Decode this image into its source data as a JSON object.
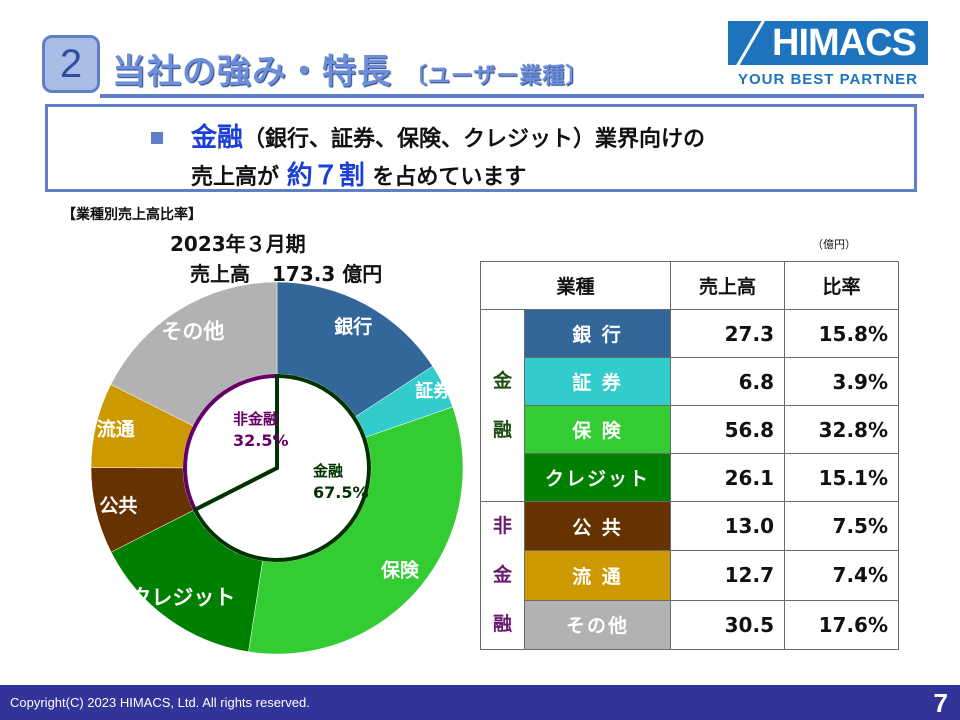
{
  "header": {
    "section_number": "2",
    "title": "当社の強み・特長",
    "subtitle": "〔ユーザー業種〕",
    "logo_text": "HIMACS",
    "tagline": "YOUR BEST PARTNER"
  },
  "message": {
    "line1_highlight": "金融",
    "line1_rest": "（銀行、証券、保険、クレジット）業界向けの",
    "line2_prefix": "売上高が",
    "line2_highlight": "約７割",
    "line2_suffix": "を占めています"
  },
  "chart_data": {
    "type": "pie",
    "variant": "donut",
    "title": "【業種別売上高比率】",
    "period": "2023年３月期",
    "total_label": "売上高",
    "total_value": "173.3 億円",
    "start": "top",
    "direction": "clockwise",
    "categories": [
      "銀行",
      "証券",
      "保険",
      "クレジット",
      "公共",
      "流通",
      "その他"
    ],
    "values": [
      15.8,
      3.9,
      32.8,
      15.1,
      7.5,
      7.4,
      17.6
    ],
    "colors": [
      "#336699",
      "#33cccc",
      "#33cc33",
      "#008000",
      "#663300",
      "#cc9900",
      "#b2b2b2"
    ],
    "inner_groups": [
      {
        "label": "金融",
        "value": "67.5%",
        "share": 67.5,
        "color": "#003300"
      },
      {
        "label": "非金融",
        "value": "32.5%",
        "share": 32.5,
        "color": "#660066"
      }
    ]
  },
  "table": {
    "unit": "（億円）",
    "headers": [
      "業種",
      "売上高",
      "比率"
    ],
    "groups": [
      {
        "label_chars": [
          "金",
          "融"
        ],
        "color": "#1d4d12"
      },
      {
        "label_chars": [
          "非",
          "金",
          "融"
        ],
        "color": "#6a1a70"
      }
    ],
    "rows": [
      {
        "category": "銀 行",
        "sales": "27.3",
        "ratio": "15.8%",
        "color": "#336699"
      },
      {
        "category": "証 券",
        "sales": "6.8",
        "ratio": "3.9%",
        "color": "#33cccc"
      },
      {
        "category": "保 険",
        "sales": "56.8",
        "ratio": "32.8%",
        "color": "#33cc33"
      },
      {
        "category": "クレジット",
        "sales": "26.1",
        "ratio": "15.1%",
        "color": "#008000"
      },
      {
        "category": "公 共",
        "sales": "13.0",
        "ratio": "7.5%",
        "color": "#663300"
      },
      {
        "category": "流 通",
        "sales": "12.7",
        "ratio": "7.4%",
        "color": "#cc9900"
      },
      {
        "category": "その他",
        "sales": "30.5",
        "ratio": "17.6%",
        "color": "#b2b2b2"
      }
    ]
  },
  "footer": {
    "copyright": "Copyright(C) 2023 HIMACS,  Ltd. All rights reserved.",
    "page_number": "7"
  }
}
